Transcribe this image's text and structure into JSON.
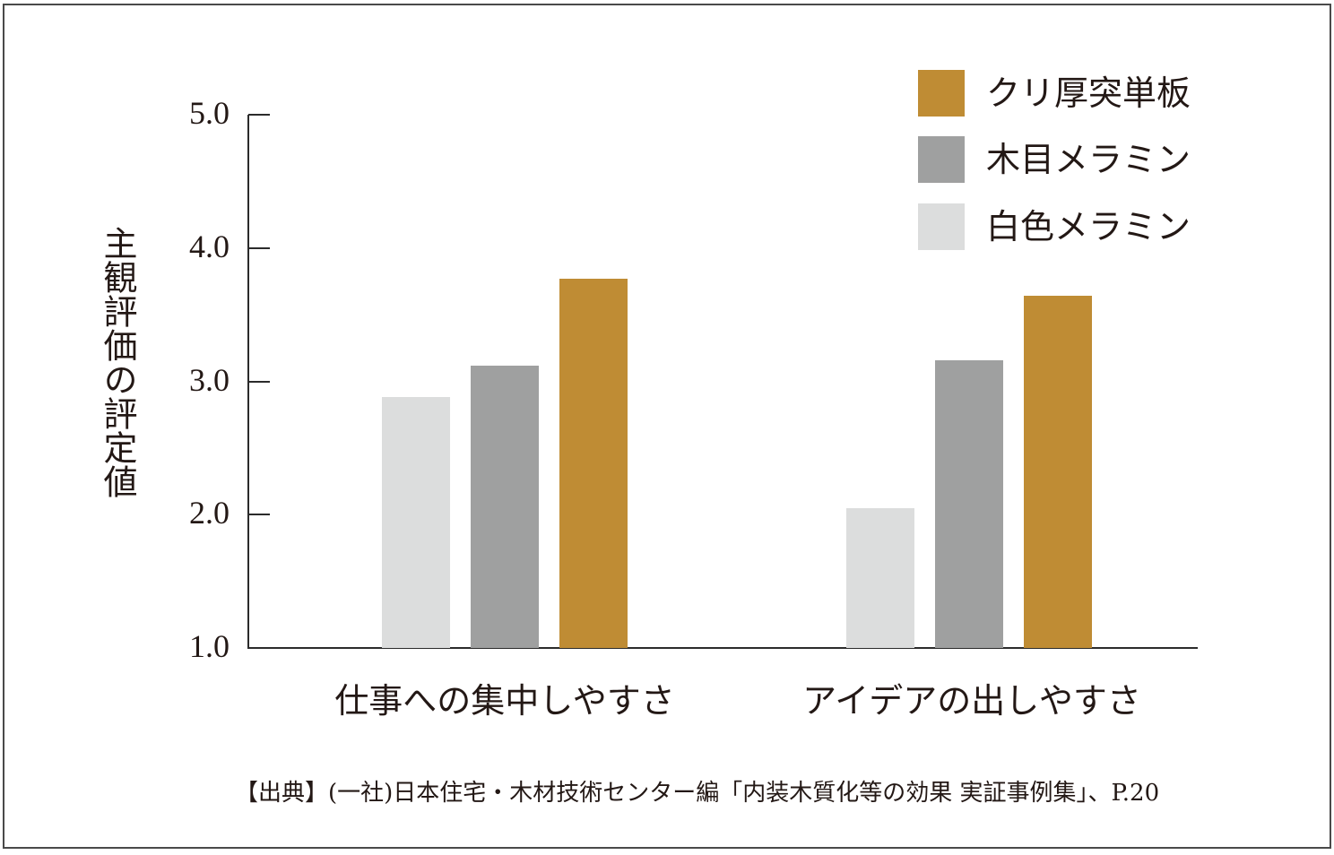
{
  "chart_data": {
    "type": "bar",
    "title": "",
    "xlabel": "",
    "ylabel": "主観評価の評定値",
    "ylim": [
      1.0,
      5.0
    ],
    "yticks": [
      "1.0",
      "2.0",
      "3.0",
      "4.0",
      "5.0"
    ],
    "grid": false,
    "legend_position": "top-right",
    "categories": [
      "仕事への集中しやすさ",
      "アイデアの出しやすさ"
    ],
    "series": [
      {
        "name": "白色メラミン",
        "color": "#dcdddd",
        "values": [
          2.88,
          2.05
        ]
      },
      {
        "name": "木目メラミン",
        "color": "#9fa0a0",
        "values": [
          3.12,
          3.16
        ]
      },
      {
        "name": "クリ厚突単板",
        "color": "#bf8c34",
        "values": [
          3.77,
          3.64
        ]
      }
    ],
    "legend": [
      {
        "name": "クリ厚突単板",
        "color": "#bf8c34"
      },
      {
        "name": "木目メラミン",
        "color": "#9fa0a0"
      },
      {
        "name": "白色メラミン",
        "color": "#dcdddd"
      }
    ],
    "source": "【出典】(一社)日本住宅・木材技術センター編「内装木質化等の効果 実証事例集」、P.20"
  }
}
